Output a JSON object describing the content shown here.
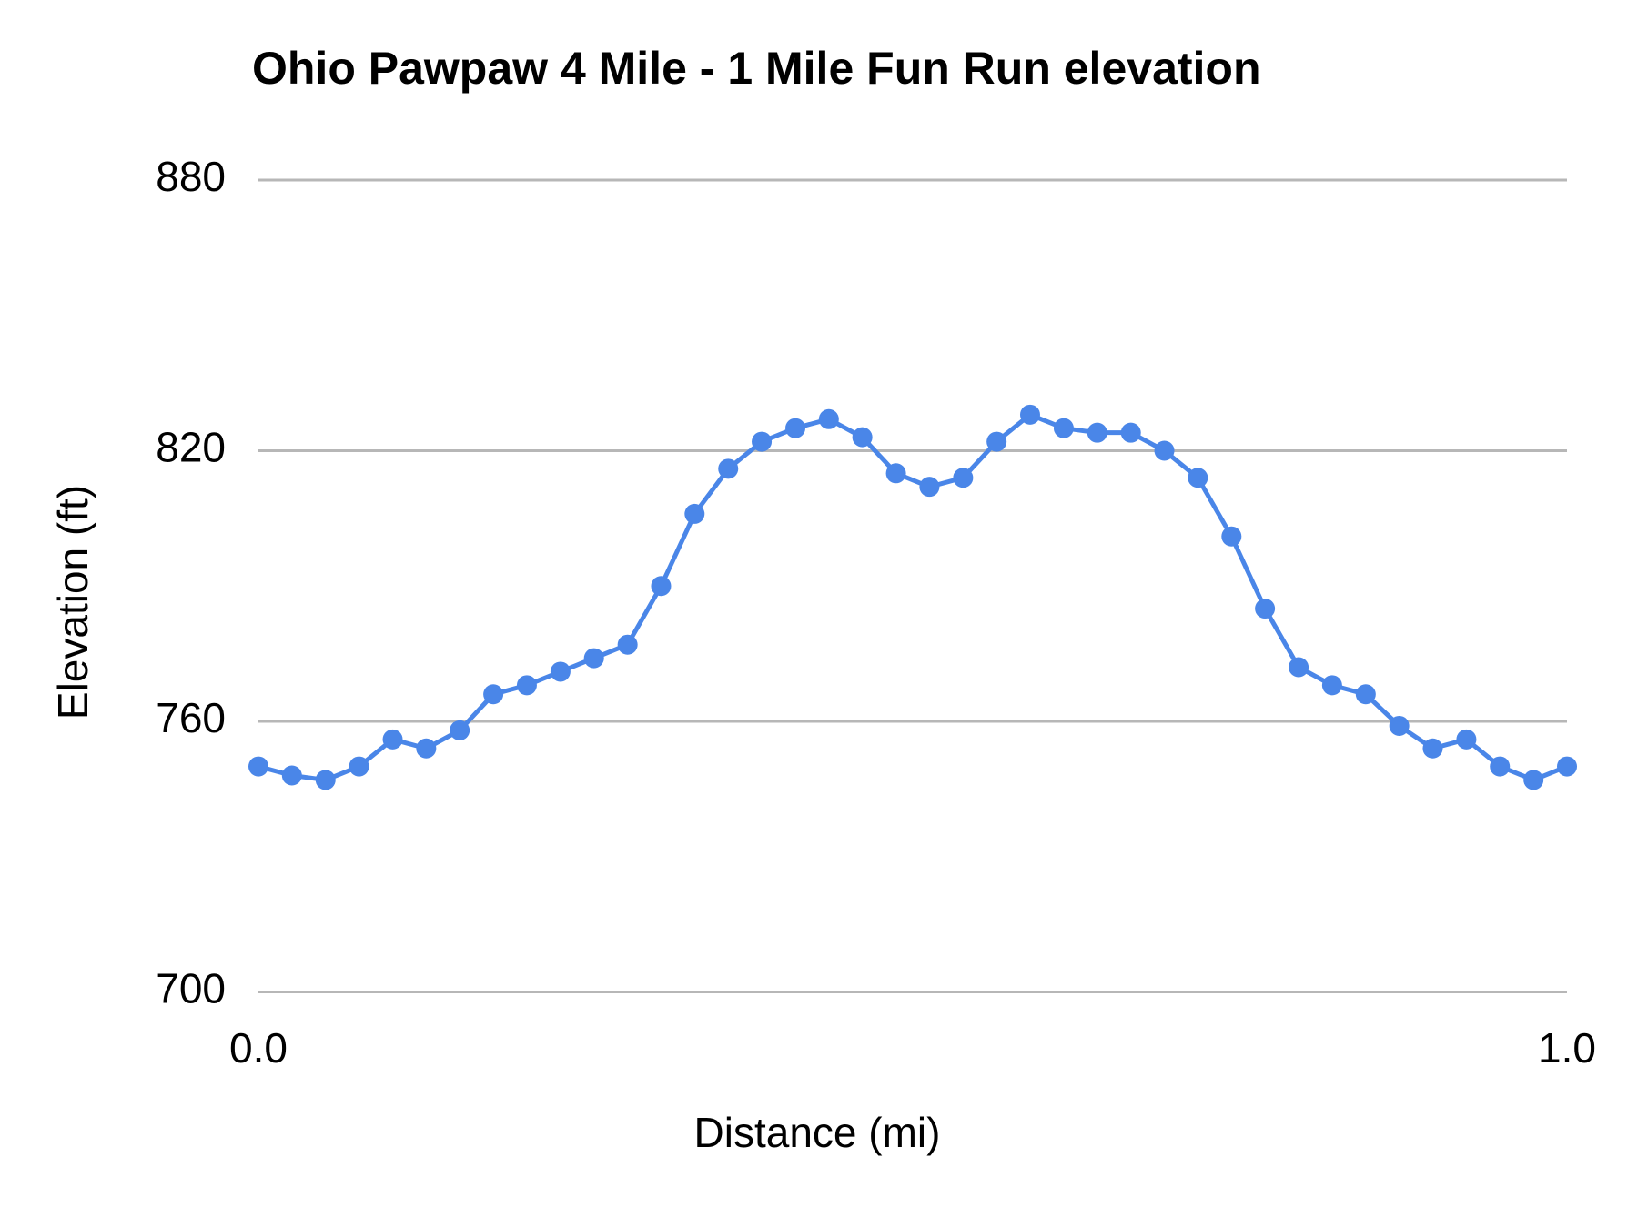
{
  "chart_data": {
    "type": "line",
    "title": "Ohio Pawpaw 4 Mile - 1 Mile Fun Run elevation",
    "xlabel": "Distance (mi)",
    "ylabel": "Elevation (ft)",
    "xlim": [
      0.0,
      1.0
    ],
    "ylim": [
      700,
      880
    ],
    "grid": "horizontal-only",
    "legend": "none",
    "xticks": [
      {
        "value": 0.0,
        "label": "0.0"
      },
      {
        "value": 1.0,
        "label": "1.0"
      }
    ],
    "yticks": [
      {
        "value": 700,
        "label": "700"
      },
      {
        "value": 760,
        "label": "760"
      },
      {
        "value": 820,
        "label": "820"
      },
      {
        "value": 880,
        "label": "880"
      }
    ],
    "style": {
      "line_color": "#4a86e8",
      "point_color": "#4a86e8",
      "grid_color": "#b7b7b7",
      "text_color": "#000000",
      "background_color": "#ffffff",
      "point_radius": 11,
      "line_width": 5
    },
    "series": [
      {
        "name": "Elevation",
        "x": [
          0,
          0.0256,
          0.0513,
          0.0769,
          0.1026,
          0.1282,
          0.1538,
          0.1795,
          0.2051,
          0.2308,
          0.2564,
          0.2821,
          0.3077,
          0.3333,
          0.359,
          0.3846,
          0.4103,
          0.4359,
          0.4615,
          0.4872,
          0.5128,
          0.5385,
          0.5641,
          0.5897,
          0.6154,
          0.641,
          0.6667,
          0.6923,
          0.7179,
          0.7436,
          0.7692,
          0.7949,
          0.8205,
          0.8462,
          0.8718,
          0.8974,
          0.9231,
          0.9487,
          0.9744,
          1.0
        ],
        "values": [
          750,
          748,
          747,
          750,
          756,
          754,
          758,
          766,
          768,
          771,
          774,
          777,
          790,
          806,
          816,
          822,
          825,
          827,
          823,
          815,
          812,
          814,
          822,
          828,
          825,
          824,
          824,
          820,
          814,
          801,
          785,
          772,
          768,
          766,
          759,
          754,
          756,
          750,
          747,
          750
        ]
      }
    ]
  }
}
